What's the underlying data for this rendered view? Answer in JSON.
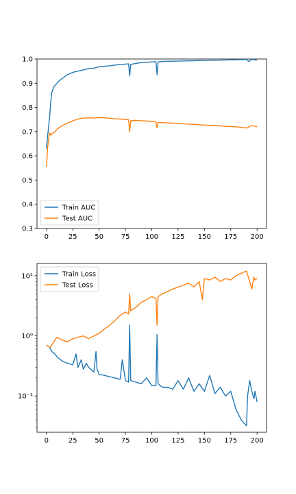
{
  "chart_data": [
    {
      "type": "line",
      "title": "",
      "xlabel": "",
      "ylabel": "",
      "xlim": [
        -9,
        209
      ],
      "ylim": [
        0.3,
        1.0
      ],
      "yscale": "linear",
      "xticks": [
        0,
        25,
        50,
        75,
        100,
        125,
        150,
        175,
        200
      ],
      "xtick_labels": [
        "0",
        "25",
        "50",
        "75",
        "100",
        "125",
        "150",
        "175",
        "200"
      ],
      "yticks": [
        0.3,
        0.4,
        0.5,
        0.6,
        0.7,
        0.8,
        0.9,
        1.0
      ],
      "ytick_labels": [
        "0.3",
        "0.4",
        "0.5",
        "0.6",
        "0.7",
        "0.8",
        "0.9",
        "1.0"
      ],
      "legend_position": "lower-left",
      "series": [
        {
          "name": "Train AUC",
          "color": "#1f77b4",
          "x": [
            0,
            1,
            2,
            3,
            4,
            5,
            6,
            7,
            8,
            10,
            12,
            15,
            20,
            25,
            30,
            35,
            40,
            45,
            50,
            55,
            60,
            65,
            70,
            75,
            78,
            79,
            80,
            85,
            90,
            95,
            100,
            104,
            105,
            106,
            110,
            120,
            130,
            140,
            150,
            160,
            170,
            180,
            190,
            192,
            195,
            200
          ],
          "values": [
            0.63,
            0.68,
            0.72,
            0.76,
            0.82,
            0.86,
            0.875,
            0.885,
            0.89,
            0.9,
            0.91,
            0.92,
            0.935,
            0.945,
            0.95,
            0.955,
            0.96,
            0.962,
            0.968,
            0.97,
            0.972,
            0.975,
            0.977,
            0.979,
            0.98,
            0.93,
            0.978,
            0.982,
            0.985,
            0.986,
            0.988,
            0.989,
            0.935,
            0.988,
            0.99,
            0.991,
            0.992,
            0.993,
            0.994,
            0.995,
            0.996,
            0.997,
            0.998,
            0.99,
            0.999,
            0.995
          ]
        },
        {
          "name": "Test AUC",
          "color": "#ff7f0e",
          "x": [
            0,
            1,
            2,
            3,
            4,
            5,
            8,
            10,
            15,
            20,
            25,
            30,
            35,
            40,
            45,
            50,
            55,
            60,
            65,
            70,
            75,
            78,
            79,
            80,
            85,
            90,
            95,
            100,
            104,
            105,
            106,
            110,
            120,
            130,
            140,
            150,
            160,
            170,
            180,
            190,
            195,
            200
          ],
          "values": [
            0.555,
            0.63,
            0.67,
            0.695,
            0.685,
            0.69,
            0.7,
            0.71,
            0.725,
            0.735,
            0.745,
            0.752,
            0.756,
            0.757,
            0.756,
            0.758,
            0.757,
            0.755,
            0.753,
            0.752,
            0.75,
            0.749,
            0.7,
            0.745,
            0.747,
            0.745,
            0.744,
            0.742,
            0.74,
            0.715,
            0.738,
            0.737,
            0.735,
            0.732,
            0.73,
            0.727,
            0.725,
            0.722,
            0.72,
            0.715,
            0.725,
            0.72
          ]
        }
      ]
    },
    {
      "type": "line",
      "title": "",
      "xlabel": "",
      "ylabel": "",
      "xlim": [
        -9,
        209
      ],
      "ylim": [
        0.025,
        16
      ],
      "yscale": "log",
      "xticks": [
        0,
        25,
        50,
        75,
        100,
        125,
        150,
        175,
        200
      ],
      "xtick_labels": [
        "0",
        "25",
        "50",
        "75",
        "100",
        "125",
        "150",
        "175",
        "200"
      ],
      "yticks": [
        0.1,
        1,
        10
      ],
      "ytick_labels": [
        "10⁻¹",
        "10⁰",
        "10¹"
      ],
      "legend_position": "upper-left",
      "series": [
        {
          "name": "Train Loss",
          "color": "#1f77b4",
          "x": [
            0,
            3,
            5,
            8,
            10,
            15,
            20,
            25,
            28,
            30,
            33,
            35,
            38,
            40,
            45,
            47,
            48,
            50,
            55,
            60,
            65,
            70,
            72,
            75,
            78,
            79,
            80,
            85,
            90,
            95,
            100,
            104,
            105,
            106,
            110,
            115,
            120,
            125,
            130,
            135,
            140,
            145,
            150,
            155,
            160,
            165,
            170,
            175,
            180,
            185,
            188,
            190,
            191,
            193,
            195,
            197,
            198,
            200
          ],
          "values": [
            0.7,
            0.65,
            0.55,
            0.5,
            0.45,
            0.38,
            0.35,
            0.33,
            0.5,
            0.3,
            0.4,
            0.28,
            0.35,
            0.3,
            0.25,
            0.55,
            0.28,
            0.23,
            0.22,
            0.21,
            0.2,
            0.19,
            0.4,
            0.18,
            0.17,
            1.5,
            0.18,
            0.17,
            0.16,
            0.2,
            0.15,
            0.15,
            1.05,
            0.16,
            0.14,
            0.14,
            0.13,
            0.18,
            0.13,
            0.2,
            0.12,
            0.16,
            0.12,
            0.22,
            0.11,
            0.14,
            0.1,
            0.12,
            0.06,
            0.04,
            0.035,
            0.032,
            0.1,
            0.18,
            0.12,
            0.09,
            0.12,
            0.08
          ]
        },
        {
          "name": "Test Loss",
          "color": "#ff7f0e",
          "x": [
            0,
            3,
            5,
            8,
            10,
            15,
            20,
            25,
            30,
            35,
            40,
            45,
            50,
            55,
            60,
            65,
            70,
            75,
            78,
            79,
            80,
            85,
            90,
            95,
            100,
            104,
            105,
            106,
            110,
            115,
            120,
            125,
            130,
            135,
            140,
            145,
            148,
            150,
            155,
            160,
            165,
            170,
            175,
            180,
            185,
            190,
            193,
            195,
            197,
            198,
            200
          ],
          "values": [
            0.7,
            0.65,
            0.7,
            0.85,
            0.95,
            0.85,
            0.8,
            0.9,
            0.95,
            1.0,
            0.9,
            1.0,
            1.1,
            1.3,
            1.5,
            1.8,
            2.2,
            2.5,
            2.3,
            5.0,
            2.6,
            3.0,
            3.6,
            4.0,
            4.5,
            4.2,
            1.5,
            4.5,
            5.0,
            5.5,
            6.0,
            6.5,
            7.0,
            7.5,
            6.5,
            8.0,
            4.0,
            9.0,
            8.5,
            9.5,
            8.0,
            9.0,
            8.5,
            10.0,
            11.0,
            12.0,
            8.0,
            6.0,
            9.5,
            8.5,
            9.0
          ]
        }
      ]
    }
  ]
}
